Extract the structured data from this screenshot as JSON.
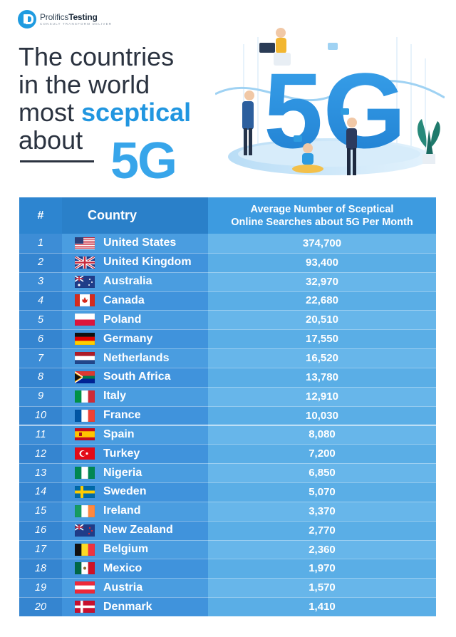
{
  "brand": {
    "name_part1": "Prolifics",
    "name_part2": "Testing",
    "tagline": "CONSULT  TRANSFORM  DELIVER"
  },
  "headline": {
    "line1": "The countries",
    "line2": "in the world",
    "line3_pre": "most",
    "line3_accent": "sceptical",
    "line4": "about",
    "big": "5G"
  },
  "illustration": {
    "label": "5G"
  },
  "colors": {
    "accent": "#2196e0",
    "header_dark": "#2a80c9",
    "value_column": "#67b6ea"
  },
  "table": {
    "headers": {
      "rank": "#",
      "country": "Country",
      "value_line1": "Average Number of Sceptical",
      "value_line2": "Online Searches about 5G Per Month"
    }
  },
  "chart_data": {
    "type": "table",
    "columns": [
      "#",
      "Country",
      "Average Number of Sceptical Online Searches about 5G Per Month"
    ],
    "rows": [
      {
        "rank": "1",
        "country": "United States",
        "value": "374,700",
        "flag": "flag-us"
      },
      {
        "rank": "2",
        "country": "United Kingdom",
        "value": "93,400",
        "flag": "flag-gb"
      },
      {
        "rank": "3",
        "country": "Australia",
        "value": "32,970",
        "flag": "flag-au"
      },
      {
        "rank": "4",
        "country": "Canada",
        "value": "22,680",
        "flag": "flag-ca"
      },
      {
        "rank": "5",
        "country": "Poland",
        "value": "20,510",
        "flag": "flag-pl"
      },
      {
        "rank": "6",
        "country": "Germany",
        "value": "17,550",
        "flag": "flag-de"
      },
      {
        "rank": "7",
        "country": "Netherlands",
        "value": "16,520",
        "flag": "flag-nl"
      },
      {
        "rank": "8",
        "country": "South Africa",
        "value": "13,780",
        "flag": "flag-za"
      },
      {
        "rank": "9",
        "country": "Italy",
        "value": "12,910",
        "flag": "flag-it"
      },
      {
        "rank": "10",
        "country": "France",
        "value": "10,030",
        "flag": "flag-fr"
      },
      {
        "rank": "11",
        "country": "Spain",
        "value": "8,080",
        "flag": "flag-es"
      },
      {
        "rank": "12",
        "country": "Turkey",
        "value": "7,200",
        "flag": "flag-tr"
      },
      {
        "rank": "13",
        "country": "Nigeria",
        "value": "6,850",
        "flag": "flag-ng"
      },
      {
        "rank": "14",
        "country": "Sweden",
        "value": "5,070",
        "flag": "flag-se"
      },
      {
        "rank": "15",
        "country": "Ireland",
        "value": "3,370",
        "flag": "flag-ie"
      },
      {
        "rank": "16",
        "country": "New Zealand",
        "value": "2,770",
        "flag": "flag-nz"
      },
      {
        "rank": "17",
        "country": "Belgium",
        "value": "2,360",
        "flag": "flag-be"
      },
      {
        "rank": "18",
        "country": "Mexico",
        "value": "1,970",
        "flag": "flag-mx"
      },
      {
        "rank": "19",
        "country": "Austria",
        "value": "1,570",
        "flag": "flag-at"
      },
      {
        "rank": "20",
        "country": "Denmark",
        "value": "1,410",
        "flag": "flag-dk"
      }
    ]
  }
}
